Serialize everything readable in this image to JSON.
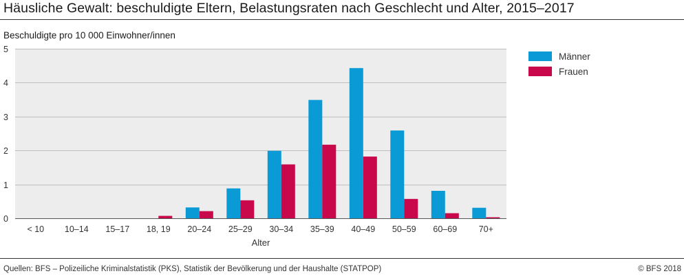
{
  "title": "Häusliche Gewalt: beschuldigte Eltern, Belastungsraten nach Geschlecht und Alter, 2015–2017",
  "source": "Quellen: BFS – Polizeiliche Kriminalstatistik (PKS), Statistik der Bevölkerung und der Haushalte (STATPOP)",
  "copyright": "© BFS 2018",
  "chart_data": {
    "type": "bar",
    "ylabel": "Beschuldigte pro 10 000 Einwohner/innen",
    "xlabel": "Alter",
    "ylim": [
      0,
      5
    ],
    "yticks": [
      0,
      1,
      2,
      3,
      4,
      5
    ],
    "grid": true,
    "legend_position": "right",
    "categories": [
      "< 10",
      "10–14",
      "15–17",
      "18, 19",
      "20–24",
      "25–29",
      "30–34",
      "35–39",
      "40–49",
      "50–59",
      "60–69",
      "70+"
    ],
    "series": [
      {
        "name": "Männer",
        "color": "#0a9bd6",
        "values": [
          0,
          0,
          0,
          0,
          0.32,
          0.88,
          1.99,
          3.49,
          4.43,
          2.59,
          0.81,
          0.31
        ]
      },
      {
        "name": "Frauen",
        "color": "#c8084a",
        "values": [
          0,
          0,
          0,
          0.07,
          0.21,
          0.53,
          1.59,
          2.17,
          1.82,
          0.57,
          0.15,
          0.03
        ]
      }
    ]
  }
}
